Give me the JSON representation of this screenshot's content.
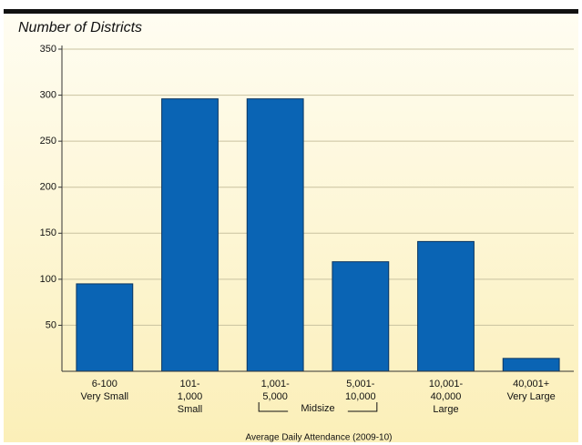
{
  "chart_data": {
    "type": "bar",
    "title": "Number of Districts",
    "categories": [
      [
        "6-100",
        "Very Small"
      ],
      [
        "101-",
        "1,000",
        "Small"
      ],
      [
        "1,001-",
        "5,000"
      ],
      [
        "5,001-",
        "10,000"
      ],
      [
        "10,001-",
        "40,000",
        "Large"
      ],
      [
        "40,001+",
        "Very Large"
      ]
    ],
    "values": [
      95,
      296,
      296,
      119,
      141,
      14
    ],
    "color": "#0a64b4",
    "annotation": "Midsize",
    "xlabel": "Average Daily Attendance (2009-10)",
    "ylim": [
      0,
      350
    ],
    "yticks": [
      50,
      100,
      150,
      200,
      250,
      300,
      350
    ],
    "grid": true
  }
}
